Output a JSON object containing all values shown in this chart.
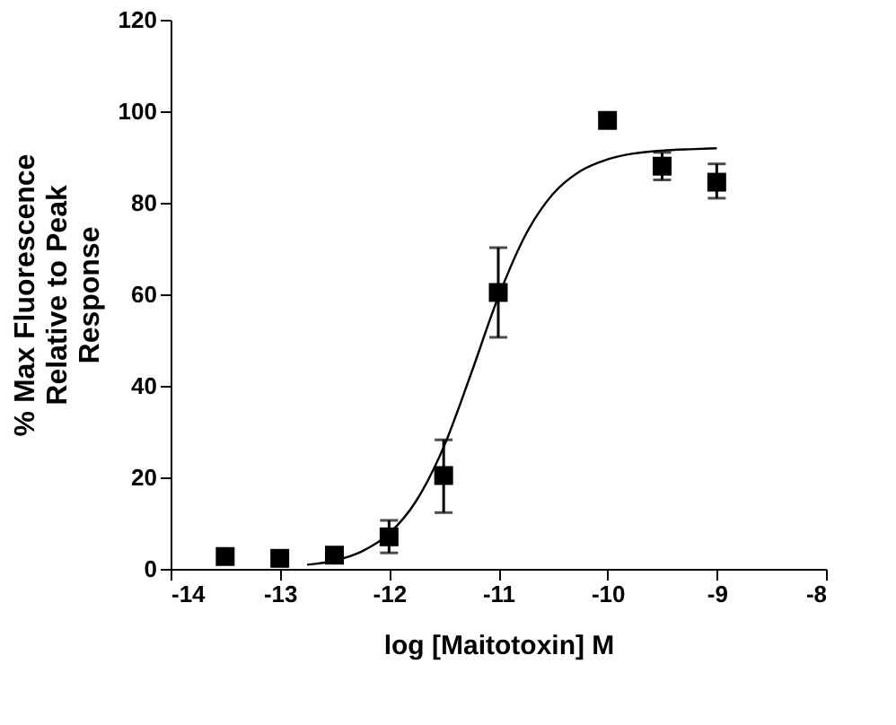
{
  "chart_data": {
    "type": "scatter",
    "xlabel": "log [Maitotoxin] M",
    "ylabel": "% Max Fluorescence Relative to Peak Response",
    "xlim": [
      -14,
      -8
    ],
    "xticks": [
      -14,
      -13,
      -12,
      -11,
      -10,
      -9,
      -8
    ],
    "ylim": [
      0,
      120
    ],
    "yticks": [
      0,
      20,
      40,
      60,
      80,
      100,
      120
    ],
    "grid": false,
    "legend": false,
    "series": [
      {
        "marker": "square",
        "color": "#000000",
        "x": [
          -13.5,
          -13,
          -12.5,
          -12,
          -11.5,
          -11,
          -10,
          -9.5,
          -9
        ],
        "values": [
          2.7,
          2.3,
          3,
          7,
          20.4,
          60.4,
          98,
          88,
          84.5
        ],
        "errors": [
          null,
          null,
          null,
          [
            3.5,
            10.6
          ],
          [
            12.3,
            28.2
          ],
          [
            50.6,
            70.2
          ],
          null,
          [
            85,
            91
          ],
          [
            81,
            88.5
          ]
        ]
      },
      {
        "type": "line",
        "marker": "none",
        "color": "#000000",
        "line_style": "solid",
        "x": [
          -12.75,
          -12.5,
          -12.25,
          -12,
          -11.75,
          -11.5,
          -11.25,
          -11,
          -10.75,
          -10.5,
          -10.25,
          -10,
          -9.75,
          -9.5,
          -9.25,
          -9
        ],
        "values": [
          0.9,
          1.8,
          3.8,
          7.7,
          14.9,
          26.6,
          42.6,
          59.4,
          73.0,
          81.9,
          86.9,
          89.5,
          90.8,
          91.4,
          91.7,
          91.9
        ]
      }
    ]
  }
}
